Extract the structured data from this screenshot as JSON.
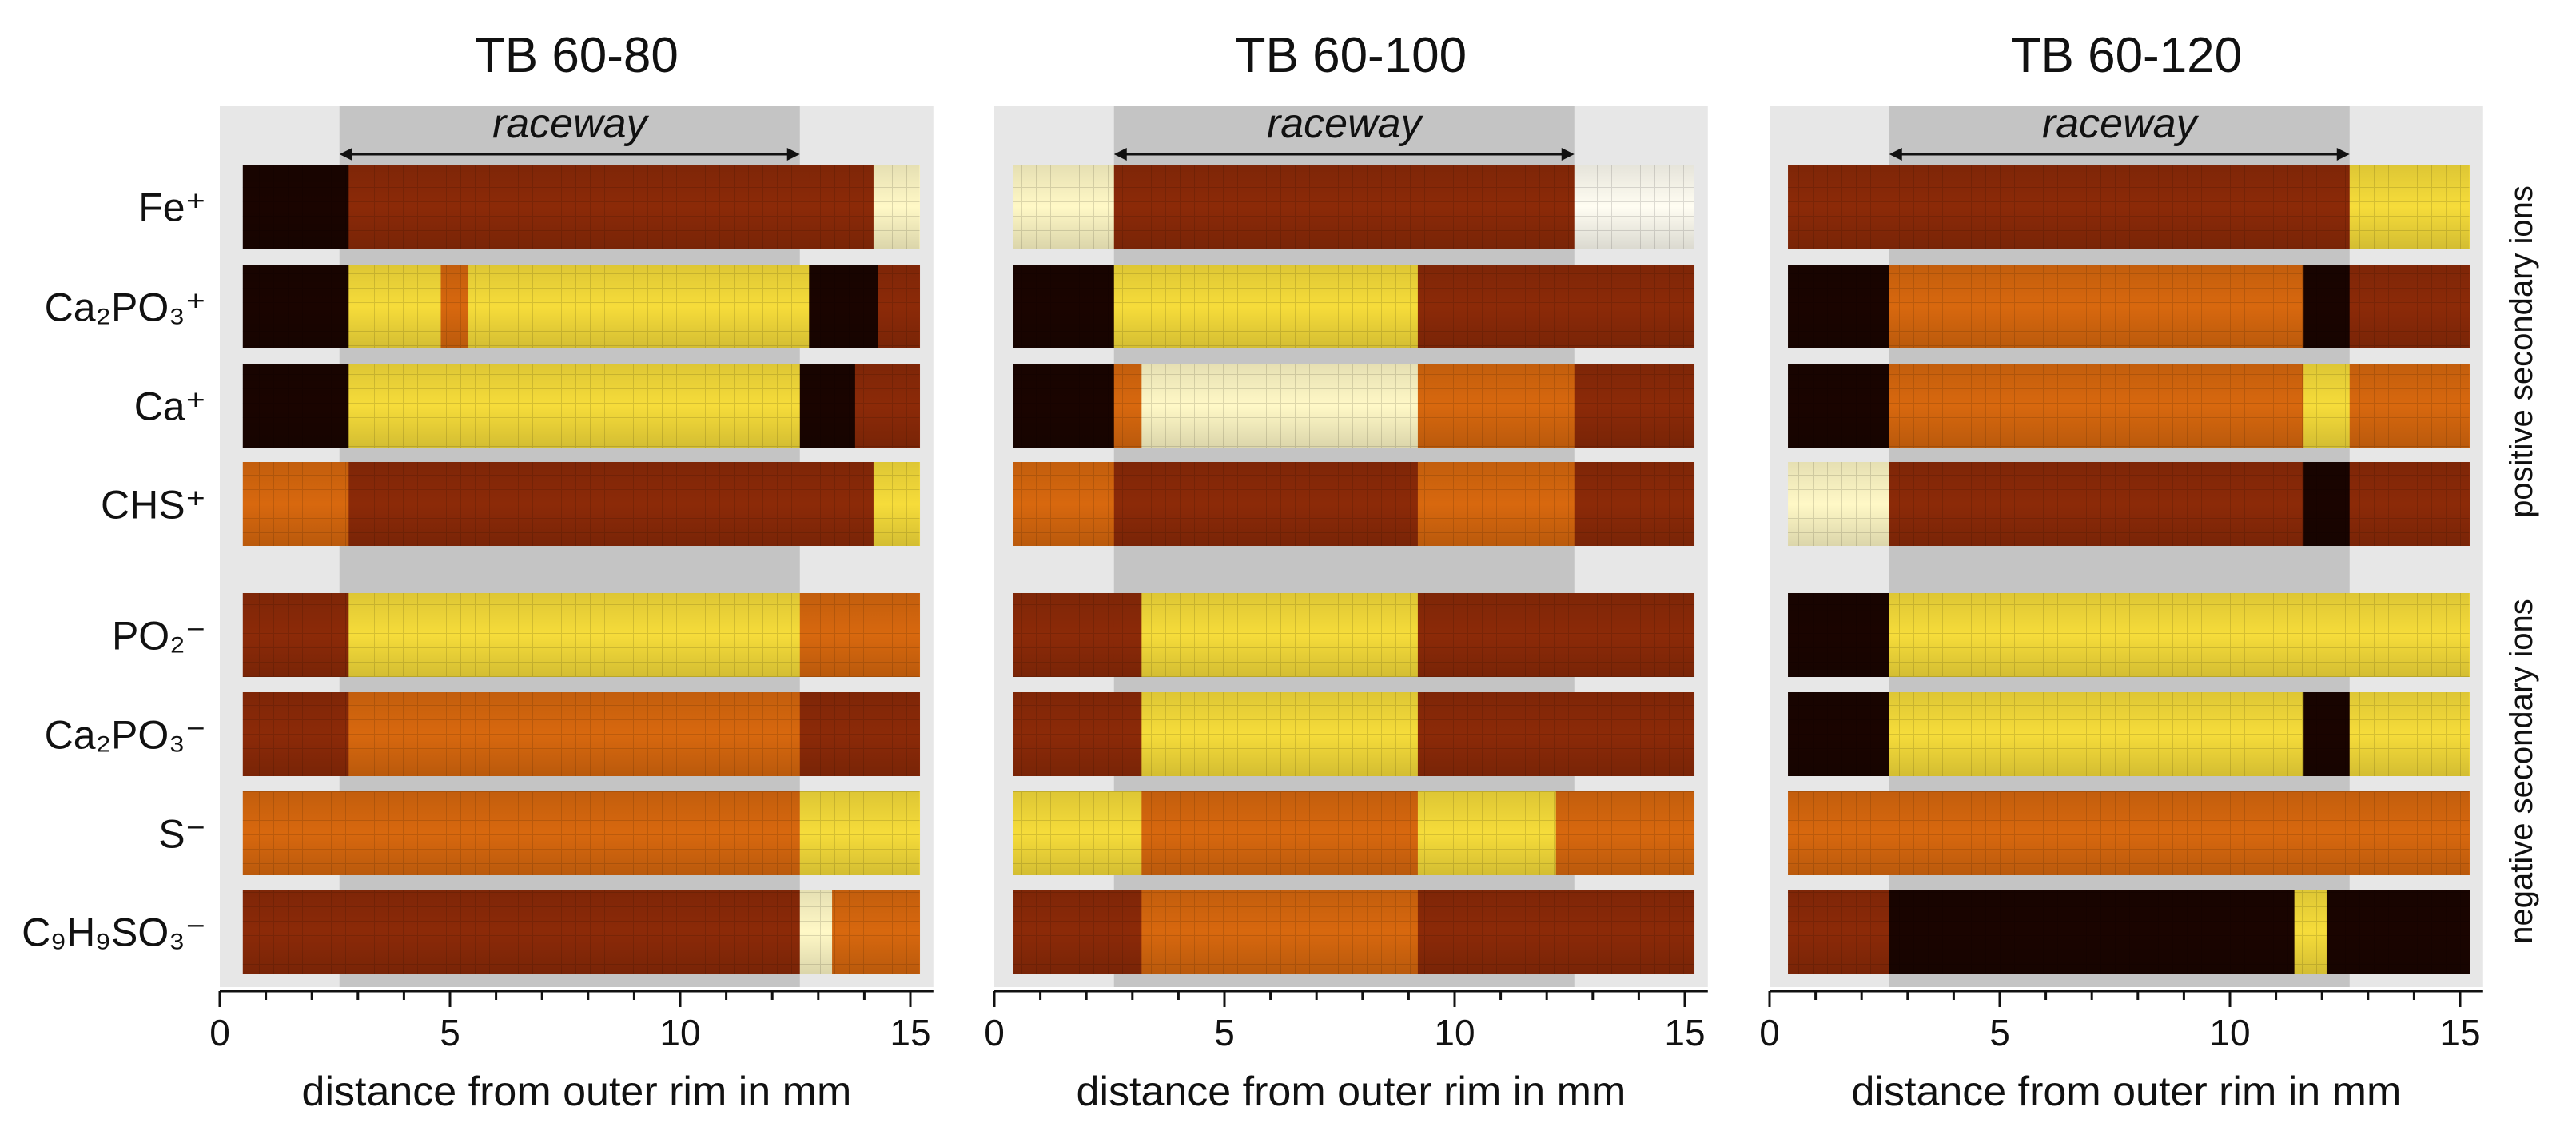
{
  "colors": {
    "panel_bg": "#e7e7e7",
    "raceway_band": "#c4c4c4",
    "heat_dark": "#1a0400",
    "heat_mid": "#8c2a08",
    "heat_orange": "#d8680e",
    "heat_yellow": "#f6dc3a",
    "heat_light": "#fff8c6"
  },
  "figure": {
    "raceway_label": "raceway",
    "x_axis_label": "distance from outer rim in mm",
    "x_ticks": [
      "0",
      "5",
      "10",
      "15"
    ],
    "axis_range_mm": [
      0,
      15.5
    ],
    "raceway_range_mm": [
      2.6,
      12.6
    ],
    "positive_group_label": "positive secondary ions",
    "negative_group_label": "negative secondary ions",
    "ion_rows": [
      {
        "label": "Fe⁺",
        "group": "positive"
      },
      {
        "label": "Ca₂PO₃⁺",
        "group": "positive"
      },
      {
        "label": "Ca⁺",
        "group": "positive"
      },
      {
        "label": "CHS⁺",
        "group": "positive"
      },
      {
        "label": "PO₂⁻",
        "group": "negative"
      },
      {
        "label": "Ca₂PO₃⁻",
        "group": "negative"
      },
      {
        "label": "S⁻",
        "group": "negative"
      },
      {
        "label": "C₉H₉SO₃⁻",
        "group": "negative"
      }
    ],
    "panels": [
      {
        "title": "TB 60-80",
        "rows": [
          [
            [
              0.5,
              2.8,
              "dark"
            ],
            [
              2.8,
              12.8,
              "mid"
            ],
            [
              12.8,
              14.2,
              "mid"
            ],
            [
              14.2,
              15.2,
              "light"
            ]
          ],
          [
            [
              0.5,
              2.8,
              "dark"
            ],
            [
              2.8,
              4.8,
              "yellow"
            ],
            [
              4.8,
              5.4,
              "orange"
            ],
            [
              5.4,
              10.8,
              "yellow"
            ],
            [
              10.8,
              12.8,
              "yellow"
            ],
            [
              12.8,
              14.3,
              "dark"
            ],
            [
              14.3,
              15.2,
              "mid"
            ]
          ],
          [
            [
              0.5,
              2.8,
              "dark"
            ],
            [
              2.8,
              12.6,
              "yellow"
            ],
            [
              12.6,
              13.8,
              "dark"
            ],
            [
              13.8,
              15.2,
              "mid"
            ]
          ],
          [
            [
              0.5,
              2.8,
              "orange"
            ],
            [
              2.8,
              12.6,
              "mid"
            ],
            [
              12.6,
              14.2,
              "mid"
            ],
            [
              14.2,
              15.2,
              "yellow"
            ]
          ],
          [
            [
              0.5,
              2.8,
              "mid"
            ],
            [
              2.8,
              12.6,
              "yellow"
            ],
            [
              12.6,
              15.2,
              "orange"
            ]
          ],
          [
            [
              0.5,
              2.8,
              "mid"
            ],
            [
              2.8,
              12.6,
              "orange"
            ],
            [
              12.6,
              15.2,
              "mid"
            ]
          ],
          [
            [
              0.5,
              2.8,
              "orange"
            ],
            [
              2.8,
              12.6,
              "orange"
            ],
            [
              12.6,
              15.2,
              "yellow"
            ]
          ],
          [
            [
              0.5,
              2.8,
              "mid"
            ],
            [
              2.8,
              12.6,
              "mid"
            ],
            [
              12.6,
              13.3,
              "light"
            ],
            [
              13.3,
              15.2,
              "orange"
            ]
          ]
        ]
      },
      {
        "title": "TB 60-100",
        "rows": [
          [
            [
              0.4,
              2.6,
              "light"
            ],
            [
              2.6,
              12.6,
              "mid"
            ],
            [
              12.6,
              15.2,
              "white"
            ]
          ],
          [
            [
              0.4,
              2.6,
              "dark"
            ],
            [
              2.6,
              9.2,
              "yellow"
            ],
            [
              9.2,
              12.2,
              "mid"
            ],
            [
              12.2,
              15.2,
              "mid"
            ]
          ],
          [
            [
              0.4,
              2.6,
              "dark"
            ],
            [
              2.6,
              3.2,
              "orange"
            ],
            [
              3.2,
              9.2,
              "light"
            ],
            [
              9.2,
              12.6,
              "orange"
            ],
            [
              12.6,
              15.2,
              "mid"
            ]
          ],
          [
            [
              0.4,
              2.6,
              "orange"
            ],
            [
              2.6,
              9.2,
              "mid"
            ],
            [
              9.2,
              12.6,
              "orange"
            ],
            [
              12.6,
              15.2,
              "mid"
            ]
          ],
          [
            [
              0.4,
              2.6,
              "mid"
            ],
            [
              2.6,
              3.2,
              "mid"
            ],
            [
              3.2,
              9.2,
              "yellow"
            ],
            [
              9.2,
              15.2,
              "mid"
            ]
          ],
          [
            [
              0.4,
              3.2,
              "mid"
            ],
            [
              3.2,
              9.2,
              "yellow"
            ],
            [
              9.2,
              15.2,
              "mid"
            ]
          ],
          [
            [
              0.4,
              3.2,
              "yellow"
            ],
            [
              3.2,
              9.2,
              "orange"
            ],
            [
              9.2,
              12.2,
              "yellow"
            ],
            [
              12.2,
              15.2,
              "orange"
            ]
          ],
          [
            [
              0.4,
              3.2,
              "mid"
            ],
            [
              3.2,
              9.2,
              "orange"
            ],
            [
              9.2,
              15.2,
              "mid"
            ]
          ]
        ]
      },
      {
        "title": "TB 60-120",
        "rows": [
          [
            [
              0.4,
              2.6,
              "mid"
            ],
            [
              2.6,
              12.6,
              "mid"
            ],
            [
              12.6,
              15.2,
              "yellow"
            ]
          ],
          [
            [
              0.4,
              2.6,
              "dark"
            ],
            [
              2.6,
              11.6,
              "orange"
            ],
            [
              11.6,
              12.6,
              "dark"
            ],
            [
              12.6,
              15.2,
              "mid"
            ]
          ],
          [
            [
              0.4,
              2.6,
              "dark"
            ],
            [
              2.6,
              11.6,
              "orange"
            ],
            [
              11.6,
              12.6,
              "yellow"
            ],
            [
              12.6,
              15.2,
              "orange"
            ]
          ],
          [
            [
              0.4,
              2.6,
              "light"
            ],
            [
              2.6,
              11.6,
              "mid"
            ],
            [
              11.6,
              12.6,
              "dark"
            ],
            [
              12.6,
              15.2,
              "mid"
            ]
          ],
          [
            [
              0.4,
              2.6,
              "dark"
            ],
            [
              2.6,
              15.2,
              "yellow"
            ]
          ],
          [
            [
              0.4,
              2.6,
              "dark"
            ],
            [
              2.6,
              11.6,
              "yellow"
            ],
            [
              11.6,
              12.6,
              "dark"
            ],
            [
              12.6,
              15.2,
              "yellow"
            ]
          ],
          [
            [
              0.4,
              2.6,
              "orange"
            ],
            [
              2.6,
              15.2,
              "orange"
            ]
          ],
          [
            [
              0.4,
              2.6,
              "mid"
            ],
            [
              2.6,
              11.4,
              "dark"
            ],
            [
              11.4,
              12.1,
              "yellow"
            ],
            [
              12.1,
              15.2,
              "dark"
            ]
          ]
        ]
      }
    ]
  }
}
